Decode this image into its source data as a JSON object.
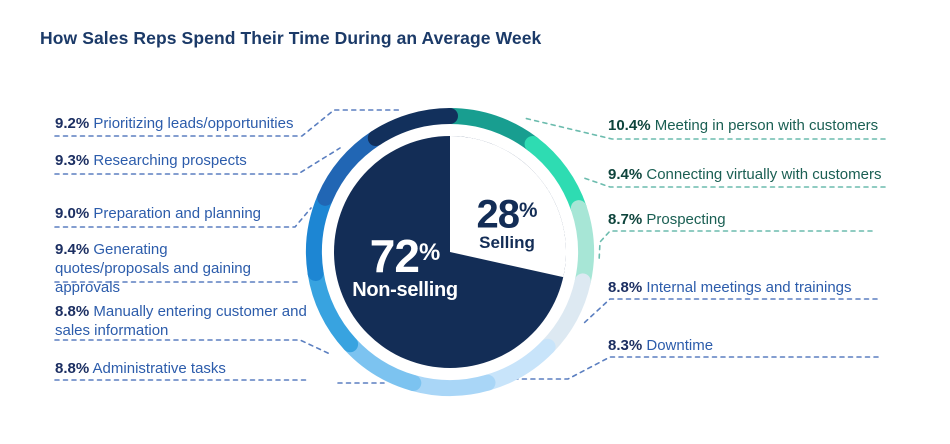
{
  "title": "How Sales Reps Spend Their Time During an Average Week",
  "chart_data": {
    "type": "pie",
    "title": "How Sales Reps Spend Their Time During an Average Week",
    "units": "percent of weekly time",
    "legend_position": "callout labels left and right with dashed leader lines",
    "center_labels": {
      "non_selling": {
        "pct": "72",
        "pct_symbol": "%",
        "label": "Non-selling",
        "value": 72
      },
      "selling": {
        "pct": "28",
        "pct_symbol": "%",
        "label": "Selling",
        "value": 28
      }
    },
    "colors": {
      "pie_non_selling": "#132d56",
      "pie_selling": "#ffffff",
      "title_text": "#1b3a68",
      "non_selling_pct_text": "#1c2f62",
      "non_selling_label_text": "#2c5cab",
      "selling_pct_text": "#0e443c",
      "selling_label_text": "#1a5f53",
      "leader_blue": "#5b7fc0",
      "leader_teal": "#6cbcae"
    },
    "segments": [
      {
        "label": "Meeting in person with customers",
        "pct_label": "10.4%",
        "value": 10.4,
        "group": "selling",
        "color": "#189e90"
      },
      {
        "label": "Connecting virtually with customers",
        "pct_label": "9.4%",
        "value": 9.4,
        "group": "selling",
        "color": "#2edcb2"
      },
      {
        "label": "Prospecting",
        "pct_label": "8.7%",
        "value": 8.7,
        "group": "selling",
        "color": "#a7e6d6"
      },
      {
        "label": "Internal meetings and trainings",
        "pct_label": "8.8%",
        "value": 8.8,
        "group": "non-selling",
        "color": "#dde9f2"
      },
      {
        "label": "Downtime",
        "pct_label": "8.3%",
        "value": 8.3,
        "group": "non-selling",
        "color": "#c8e4fa"
      },
      {
        "label": "Administrative tasks",
        "pct_label": "8.8%",
        "value": 8.8,
        "group": "non-selling",
        "color": "#a9d6f7"
      },
      {
        "label": "Manually entering customer and sales information",
        "pct_label": "8.8%",
        "value": 8.8,
        "group": "non-selling",
        "color": "#7cc3f0"
      },
      {
        "label": "Generating quotes/proposals and gaining approvals",
        "pct_label": "9.4%",
        "value": 9.4,
        "group": "non-selling",
        "color": "#38a3e0"
      },
      {
        "label": "Preparation and planning",
        "pct_label": "9.0%",
        "value": 9.0,
        "group": "non-selling",
        "color": "#1d86d3"
      },
      {
        "label": "Researching prospects",
        "pct_label": "9.3%",
        "value": 9.3,
        "group": "non-selling",
        "color": "#2166b4"
      },
      {
        "label": "Prioritizing leads/opportunities",
        "pct_label": "9.2%",
        "value": 9.2,
        "group": "non-selling",
        "color": "#12305c"
      }
    ]
  }
}
